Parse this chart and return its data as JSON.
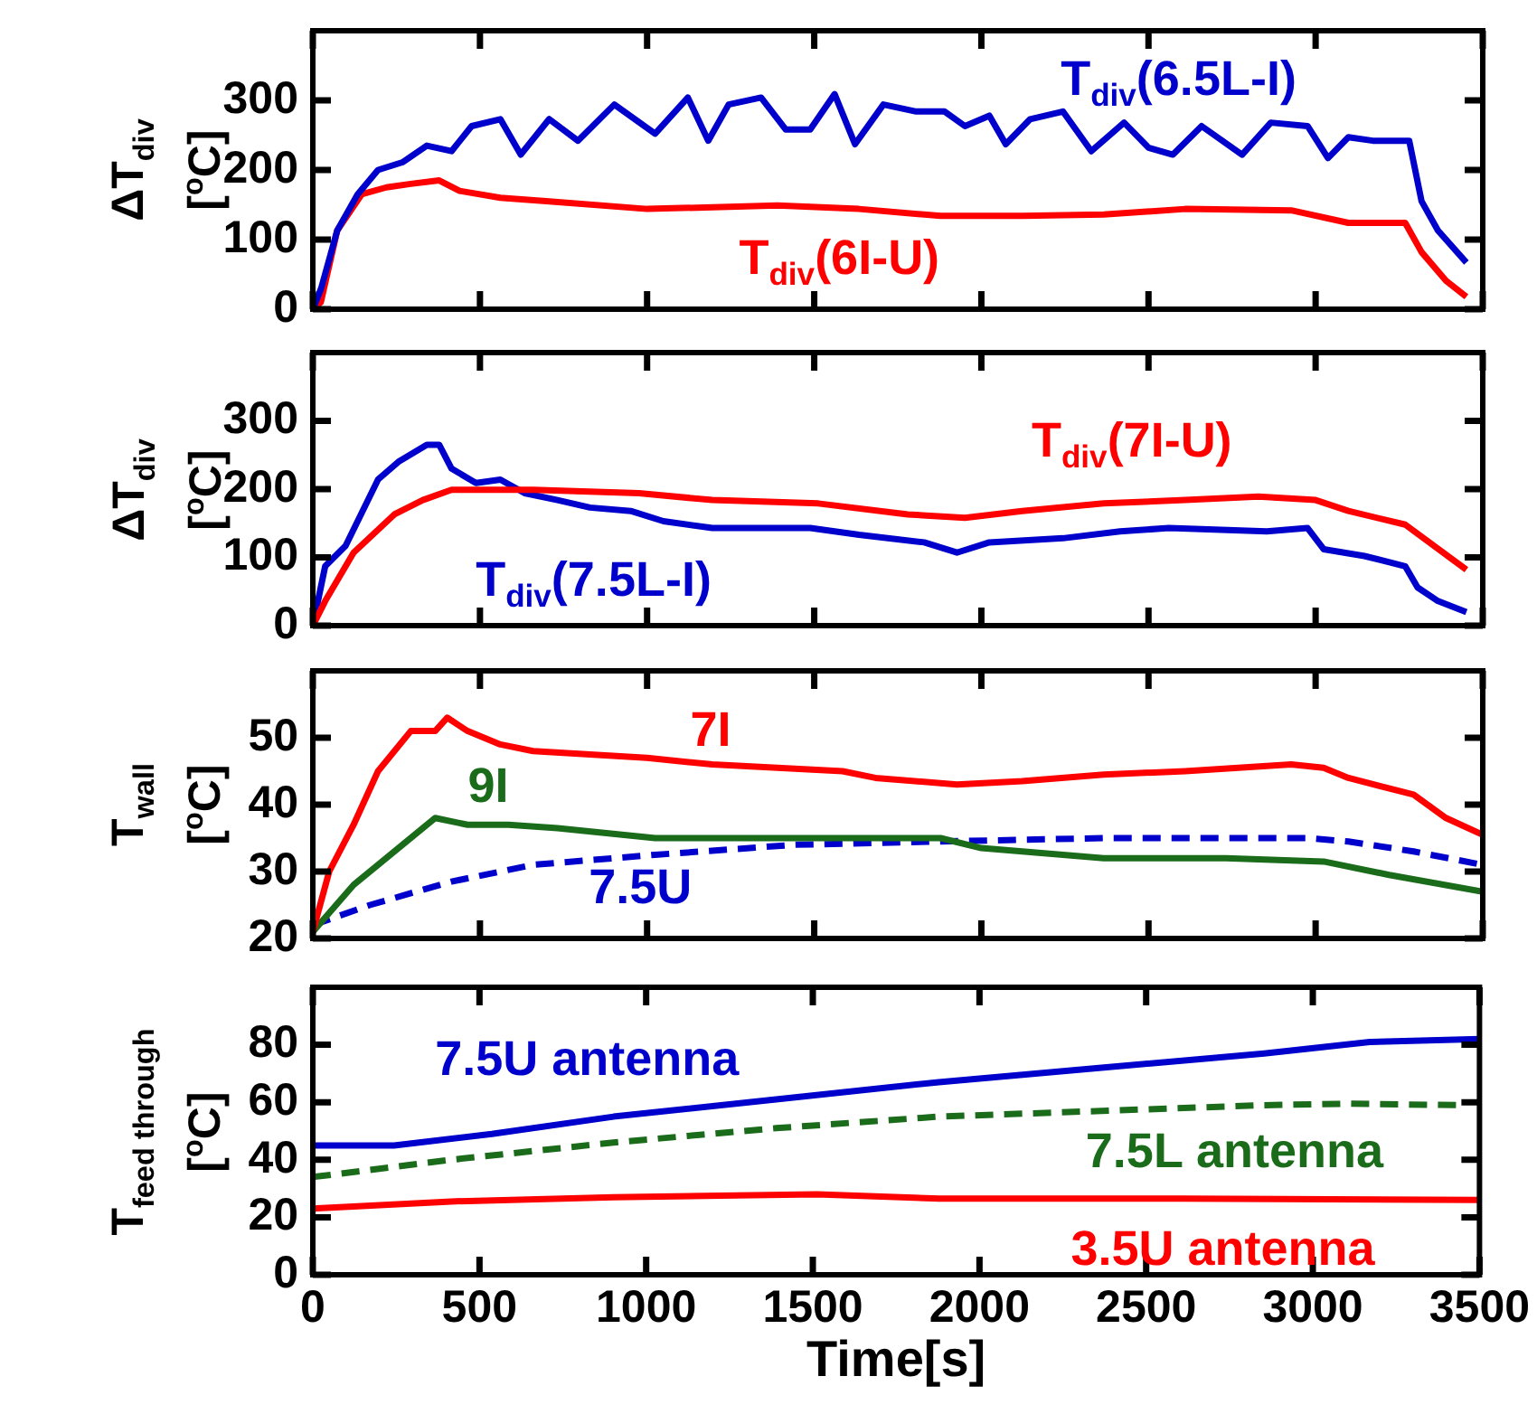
{
  "chart_data": [
    {
      "type": "line",
      "ylabel": "ΔT$_{div}$\n[$^{o}$C]",
      "xlim": [
        0,
        3500
      ],
      "xticks": [
        0,
        500,
        1000,
        1500,
        2000,
        2500,
        3000,
        3500
      ],
      "ylim": [
        0,
        400
      ],
      "yticks": [
        0,
        100,
        200,
        300
      ],
      "tick_labels": "y",
      "grid": false,
      "legend": false,
      "series": [
        {
          "name": "T$_{div}$(6.5L-I)",
          "color": "#0000cc",
          "line_style": "solid",
          "x": [
            0,
            25,
            73,
            134,
            195,
            268,
            341,
            415,
            475,
            561,
            622,
            707,
            793,
            902,
            1024,
            1122,
            1183,
            1244,
            1341,
            1415,
            1488,
            1561,
            1622,
            1707,
            1805,
            1890,
            1951,
            2024,
            2073,
            2146,
            2244,
            2329,
            2427,
            2500,
            2573,
            2659,
            2780,
            2866,
            2976,
            3037,
            3098,
            3171,
            3280,
            3317,
            3366,
            3451
          ],
          "values": [
            0,
            30,
            113,
            165,
            200,
            211,
            235,
            227,
            263,
            273,
            222,
            273,
            242,
            294,
            252,
            304,
            242,
            294,
            304,
            258,
            258,
            309,
            237,
            294,
            284,
            284,
            263,
            278,
            237,
            273,
            284,
            227,
            268,
            232,
            222,
            263,
            222,
            268,
            263,
            217,
            247,
            242,
            242,
            155,
            113,
            67
          ]
        },
        {
          "name": "T$_{div}$(6I-U)",
          "color": "#ff0000",
          "line_style": "solid",
          "x": [
            0,
            24,
            73,
            146,
            220,
            293,
            378,
            439,
            561,
            707,
            1000,
            1390,
            1634,
            1878,
            2122,
            2366,
            2610,
            2927,
            3098,
            3268,
            3317,
            3390,
            3451
          ],
          "values": [
            0,
            10,
            113,
            165,
            175,
            180,
            185,
            170,
            160,
            155,
            144,
            149,
            144,
            134,
            134,
            136,
            144,
            142,
            124,
            124,
            82,
            41,
            18
          ]
        }
      ]
    },
    {
      "type": "line",
      "ylabel": "ΔT$_{div}$\n[$^{o}$C]",
      "xlim": [
        0,
        3500
      ],
      "xticks": [
        0,
        500,
        1000,
        1500,
        2000,
        2500,
        3000,
        3500
      ],
      "ylim": [
        0,
        400
      ],
      "yticks": [
        0,
        100,
        200,
        300
      ],
      "tick_labels": "y",
      "grid": false,
      "legend": false,
      "series": [
        {
          "name": "T$_{div}$(7I-U)",
          "color": "#ff0000",
          "line_style": "solid",
          "x": [
            0,
            37,
            122,
            244,
            329,
            415,
            659,
            976,
            1195,
            1512,
            1780,
            1951,
            2122,
            2366,
            2610,
            2829,
            3000,
            3098,
            3268,
            3451
          ],
          "values": [
            0,
            36,
            107,
            163,
            184,
            199,
            199,
            194,
            184,
            179,
            163,
            158,
            168,
            179,
            184,
            189,
            184,
            168,
            148,
            82
          ]
        },
        {
          "name": "T$_{div}$(7.5L-I)",
          "color": "#0000cc",
          "line_style": "solid",
          "x": [
            0,
            37,
            98,
            195,
            256,
            341,
            378,
            415,
            488,
            561,
            634,
            732,
            829,
            951,
            1049,
            1195,
            1317,
            1488,
            1634,
            1829,
            1927,
            2024,
            2244,
            2415,
            2561,
            2854,
            2976,
            3024,
            3146,
            3268,
            3305,
            3366,
            3451
          ],
          "values": [
            0,
            87,
            117,
            214,
            240,
            265,
            265,
            230,
            209,
            214,
            194,
            184,
            173,
            168,
            153,
            143,
            143,
            143,
            133,
            122,
            107,
            122,
            128,
            138,
            143,
            138,
            143,
            112,
            102,
            87,
            56,
            36,
            20
          ]
        }
      ]
    },
    {
      "type": "line",
      "ylabel": "T$_{wall}$\n[$^{o}$C]",
      "xlim": [
        0,
        3500
      ],
      "xticks": [
        0,
        500,
        1000,
        1500,
        2000,
        2500,
        3000,
        3500
      ],
      "ylim": [
        20,
        60
      ],
      "yticks": [
        20,
        30,
        40,
        50
      ],
      "tick_labels": "y",
      "grid": false,
      "legend": false,
      "series": [
        {
          "name": "7I",
          "color": "#ff0000",
          "line_style": "solid",
          "x": [
            0,
            49,
            122,
            195,
            293,
            366,
            402,
            463,
            561,
            659,
            1000,
            1195,
            1585,
            1683,
            1927,
            2122,
            2366,
            2610,
            2927,
            3024,
            3098,
            3293,
            3390,
            3500
          ],
          "values": [
            21,
            30,
            37,
            45,
            51,
            51,
            53,
            51,
            49,
            48,
            47,
            46,
            45,
            44,
            43,
            43.5,
            44.5,
            45,
            46,
            45.5,
            44,
            41.5,
            38,
            35.5
          ]
        },
        {
          "name": "9I",
          "color": "#1a6b1a",
          "line_style": "solid",
          "x": [
            0,
            122,
            244,
            366,
            463,
            585,
            732,
            1024,
            1390,
            1878,
            2000,
            2366,
            2732,
            3024,
            3220,
            3500
          ],
          "values": [
            21,
            28,
            33,
            38,
            37,
            37,
            36.5,
            35,
            35,
            35,
            33.5,
            32,
            32,
            31.5,
            29.5,
            27
          ]
        },
        {
          "name": "7.5U",
          "color": "#0000cc",
          "line_style": "dashed",
          "x": [
            0,
            171,
            415,
            659,
            1024,
            1439,
            1878,
            2366,
            2976,
            3098,
            3293,
            3500
          ],
          "values": [
            22,
            25,
            28.5,
            31,
            32.5,
            34,
            34.5,
            35,
            35,
            34.5,
            33,
            31
          ]
        }
      ]
    },
    {
      "type": "line",
      "ylabel": "T$_{feed through}$\n[$^{o}$C]",
      "xlabel": "Time[s]",
      "xlim": [
        0,
        3500
      ],
      "xticks": [
        0,
        500,
        1000,
        1500,
        2000,
        2500,
        3000,
        3500
      ],
      "ylim": [
        0,
        100
      ],
      "yticks": [
        0,
        20,
        40,
        60,
        80
      ],
      "grid": false,
      "legend": false,
      "series": [
        {
          "name": "7.5U antenna",
          "color": "#0000cc",
          "line_style": "solid",
          "x": [
            0,
            244,
            537,
            902,
            1390,
            1878,
            2366,
            2854,
            3171,
            3500
          ],
          "values": [
            45,
            45,
            49,
            55,
            61,
            67,
            72,
            77,
            81,
            82
          ]
        },
        {
          "name": "7.5L antenna",
          "color": "#1a6b1a",
          "line_style": "dashed",
          "x": [
            0,
            415,
            902,
            1390,
            1878,
            2366,
            2854,
            3098,
            3439
          ],
          "values": [
            34,
            40,
            46,
            51,
            55,
            57,
            59,
            59.5,
            59
          ]
        },
        {
          "name": "3.5U antenna",
          "color": "#ff0000",
          "line_style": "solid",
          "x": [
            0,
            415,
            902,
            1512,
            1878,
            2610,
            3500
          ],
          "values": [
            23,
            25.5,
            27,
            28,
            26.5,
            26.5,
            26
          ]
        }
      ]
    }
  ]
}
